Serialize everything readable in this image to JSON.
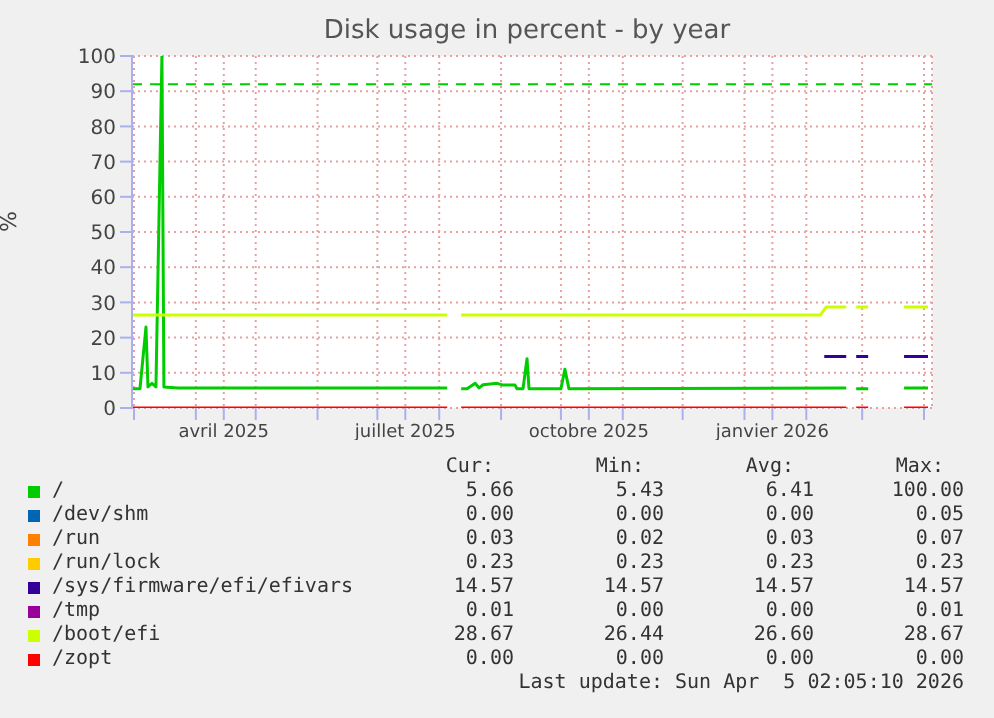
{
  "chart_data": {
    "type": "line",
    "title": "Disk usage in percent - by year",
    "ylabel": "%",
    "xlim": [
      "2025-02-28",
      "2026-04-05"
    ],
    "xticks": [
      {
        "value": "2025-03-01",
        "label": null
      },
      {
        "value": "2025-04-01",
        "label": null
      },
      {
        "value": "2025-04-15",
        "label": "avril 2025"
      },
      {
        "value": "2025-05-01",
        "label": null
      },
      {
        "value": "2025-06-01",
        "label": null
      },
      {
        "value": "2025-07-01",
        "label": null
      },
      {
        "value": "2025-07-15",
        "label": "juillet 2025"
      },
      {
        "value": "2025-08-01",
        "label": null
      },
      {
        "value": "2025-09-01",
        "label": null
      },
      {
        "value": "2025-10-01",
        "label": null
      },
      {
        "value": "2025-10-15",
        "label": "octobre 2025"
      },
      {
        "value": "2025-11-01",
        "label": null
      },
      {
        "value": "2025-12-01",
        "label": null
      },
      {
        "value": "2026-01-01",
        "label": null
      },
      {
        "value": "2026-01-15",
        "label": "janvier 2026"
      },
      {
        "value": "2026-02-01",
        "label": null
      },
      {
        "value": "2026-03-01",
        "label": null
      },
      {
        "value": "2026-04-01",
        "label": null
      }
    ],
    "ylim": [
      0,
      100
    ],
    "yticks": [
      0,
      10,
      20,
      30,
      40,
      50,
      60,
      70,
      80,
      90,
      100
    ],
    "grid": true,
    "legend": "bottom",
    "marker": "none",
    "line_style": "solid",
    "ref_lines": [
      {
        "axis": "y",
        "value": 92,
        "color": "#00cc00",
        "line_style": "dashed"
      }
    ],
    "series": [
      {
        "name": "/",
        "color": "#00cc00",
        "x": [
          "2025-02-28",
          "2025-03-04",
          "2025-03-07",
          "2025-03-08",
          "2025-03-10",
          "2025-03-12",
          "2025-03-15",
          "2025-03-16",
          "2025-03-23",
          "2025-08-05",
          "2025-08-08",
          "2025-08-12",
          "2025-08-15",
          "2025-08-19",
          "2025-08-21",
          "2025-08-23",
          "2025-08-30",
          "2025-09-02",
          "2025-09-08",
          "2025-09-09",
          "2025-09-12",
          "2025-09-14",
          "2025-09-15",
          "2025-10-01",
          "2025-10-03",
          "2025-10-05",
          "2026-02-21",
          "2026-02-24",
          "2026-02-26",
          "2026-03-04",
          "2026-03-10",
          "2026-03-22",
          "2026-04-03"
        ],
        "values": [
          5.5,
          5.5,
          23,
          6,
          7,
          6,
          100,
          6,
          5.7,
          5.7,
          null,
          5.5,
          5.5,
          7,
          5.7,
          6.6,
          7,
          6.5,
          6.5,
          5.5,
          5.5,
          14,
          5.5,
          5.5,
          11,
          5.5,
          5.7,
          null,
          5.5,
          5.5,
          null,
          5.7,
          5.7
        ]
      },
      {
        "name": "/dev/shm",
        "color": "#0066b3"
      },
      {
        "name": "/run",
        "color": "#ff8000"
      },
      {
        "name": "/run/lock",
        "color": "#ffcc00"
      },
      {
        "name": "/sys/firmware/efi/efivars",
        "color": "#330099",
        "x": [
          "2026-02-10",
          "2026-02-21",
          "2026-02-24",
          "2026-02-26",
          "2026-03-04",
          "2026-03-10",
          "2026-03-22",
          "2026-04-03"
        ],
        "values": [
          14.6,
          14.6,
          null,
          14.6,
          14.6,
          null,
          14.6,
          14.6
        ]
      },
      {
        "name": "/tmp",
        "color": "#990099"
      },
      {
        "name": "/boot/efi",
        "color": "#ccff00",
        "x": [
          "2025-02-28",
          "2025-08-05",
          "2025-08-08",
          "2025-08-12",
          "2026-02-08",
          "2026-02-11",
          "2026-02-21",
          "2026-02-24",
          "2026-02-26",
          "2026-03-04",
          "2026-03-10",
          "2026-03-22",
          "2026-04-03"
        ],
        "values": [
          26.4,
          26.4,
          null,
          26.4,
          26.4,
          28.7,
          28.7,
          null,
          28.7,
          28.7,
          null,
          28.7,
          28.7
        ]
      },
      {
        "name": "/zopt",
        "color": "#ff0000",
        "x": [
          "2025-02-28",
          "2025-08-05",
          "2025-08-08",
          "2025-08-12",
          "2026-02-21",
          "2026-02-24",
          "2026-02-26",
          "2026-03-04",
          "2026-03-10",
          "2026-03-22",
          "2026-04-03"
        ],
        "values": [
          0,
          0,
          null,
          0,
          0,
          null,
          0,
          0,
          null,
          0,
          0
        ]
      }
    ],
    "annotations": [
      "Cur:",
      "Min:",
      "Avg:",
      "Max:",
      "5.66",
      "5.43",
      "6.41",
      "100.00",
      "0.00",
      "0.00",
      "0.00",
      "0.05",
      "0.03",
      "0.02",
      "0.03",
      "0.07",
      "0.23",
      "0.23",
      "0.23",
      "0.23",
      "14.57",
      "14.57",
      "14.57",
      "14.57",
      "0.01",
      "0.00",
      "0.00",
      "0.01",
      "28.67",
      "26.44",
      "26.60",
      "28.67",
      "0.00",
      "0.00",
      "0.00",
      "0.00",
      "Last update: Sun Apr  5 02:05:10 2026"
    ]
  }
}
